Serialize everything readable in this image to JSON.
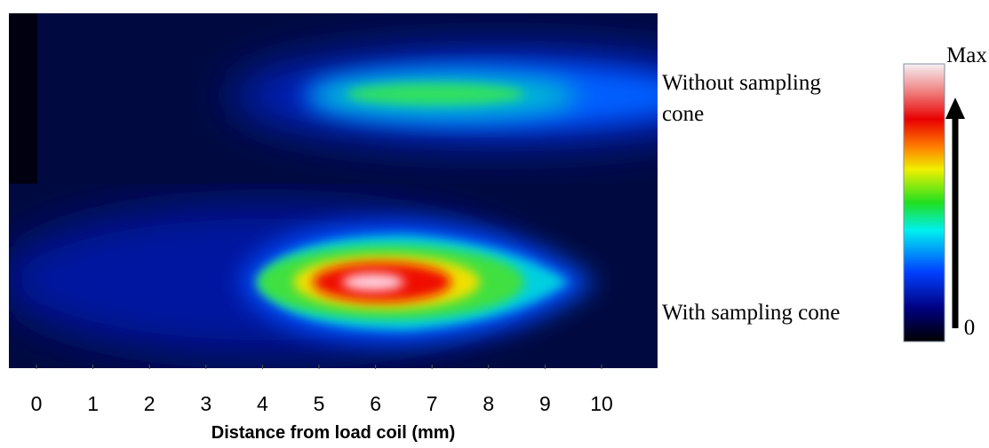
{
  "panels": [
    {
      "label": "Without  sampling cone"
    },
    {
      "label": "With sampling cone"
    }
  ],
  "x_axis": {
    "label": "Distance from load coil (mm)",
    "ticks": [
      "0",
      "1",
      "2",
      "3",
      "4",
      "5",
      "6",
      "7",
      "8",
      "9",
      "10"
    ]
  },
  "colorbar": {
    "max_label": "Max",
    "min_label": "0"
  }
}
